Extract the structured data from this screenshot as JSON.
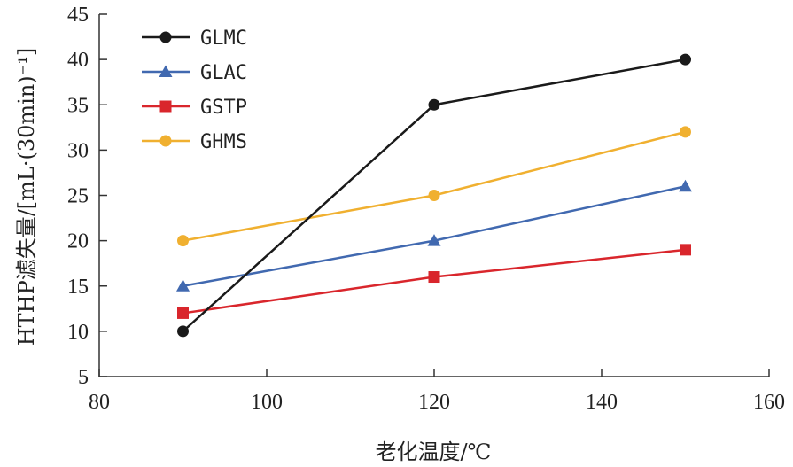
{
  "chart_data": {
    "type": "line",
    "xlabel": "老化温度/℃",
    "ylabel": "HTHP滤失量/[mL·(30min)⁻¹]",
    "xlim": [
      80,
      160
    ],
    "ylim": [
      5,
      45
    ],
    "xticks": [
      80,
      100,
      120,
      140,
      160
    ],
    "yticks": [
      5,
      10,
      15,
      20,
      25,
      30,
      35,
      40,
      45
    ],
    "x": [
      90,
      120,
      150
    ],
    "grid": false,
    "legend_position": "top-left",
    "series": [
      {
        "name": "GLMC",
        "values": [
          10,
          35,
          40
        ],
        "color": "#1a1a1a",
        "marker": "circle"
      },
      {
        "name": "GLAC",
        "values": [
          15,
          20,
          26
        ],
        "color": "#4169b0",
        "marker": "triangle"
      },
      {
        "name": "GSTP",
        "values": [
          12,
          16,
          19
        ],
        "color": "#d9262c",
        "marker": "square"
      },
      {
        "name": "GHMS",
        "values": [
          20,
          25,
          32
        ],
        "color": "#f0b030",
        "marker": "circle"
      }
    ]
  }
}
